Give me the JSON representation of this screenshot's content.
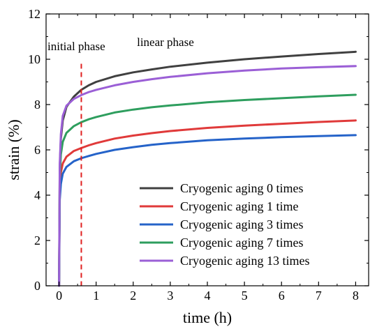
{
  "chart_data": {
    "type": "line",
    "xlabel": "time (h)",
    "ylabel": "strain (%)",
    "xlim": [
      -0.35,
      8.35
    ],
    "ylim": [
      0,
      12
    ],
    "xticks": [
      0,
      1,
      2,
      3,
      4,
      5,
      6,
      7,
      8
    ],
    "yticks": [
      0,
      2,
      4,
      6,
      8,
      10,
      12
    ],
    "grid": false,
    "legend_position": "bottom-right",
    "annotations": {
      "initial_phase": "initial phase",
      "linear_phase": "linear phase",
      "boundary_x": 0.6,
      "boundary_color": "#e02020"
    },
    "series": [
      {
        "name": "Cryogenic aging 0 times",
        "color": "#404040",
        "points": [
          [
            0,
            0
          ],
          [
            0.02,
            5.2
          ],
          [
            0.05,
            6.5
          ],
          [
            0.1,
            7.3
          ],
          [
            0.2,
            7.9
          ],
          [
            0.4,
            8.35
          ],
          [
            0.6,
            8.65
          ],
          [
            0.8,
            8.85
          ],
          [
            1,
            9.0
          ],
          [
            1.5,
            9.25
          ],
          [
            2,
            9.42
          ],
          [
            2.5,
            9.55
          ],
          [
            3,
            9.67
          ],
          [
            4,
            9.85
          ],
          [
            5,
            10.0
          ],
          [
            6,
            10.12
          ],
          [
            7,
            10.23
          ],
          [
            8,
            10.33
          ]
        ]
      },
      {
        "name": "Cryogenic aging 1 time",
        "color": "#e03a3a",
        "points": [
          [
            0,
            0
          ],
          [
            0.02,
            4.3
          ],
          [
            0.05,
            5.0
          ],
          [
            0.1,
            5.4
          ],
          [
            0.2,
            5.7
          ],
          [
            0.4,
            5.95
          ],
          [
            0.6,
            6.08
          ],
          [
            0.8,
            6.2
          ],
          [
            1,
            6.3
          ],
          [
            1.5,
            6.5
          ],
          [
            2,
            6.63
          ],
          [
            2.5,
            6.74
          ],
          [
            3,
            6.83
          ],
          [
            4,
            6.97
          ],
          [
            5,
            7.07
          ],
          [
            6,
            7.15
          ],
          [
            7,
            7.23
          ],
          [
            8,
            7.3
          ]
        ]
      },
      {
        "name": "Cryogenic aging 3 times",
        "color": "#2563c9",
        "points": [
          [
            0,
            0
          ],
          [
            0.02,
            3.8
          ],
          [
            0.05,
            4.5
          ],
          [
            0.1,
            4.95
          ],
          [
            0.2,
            5.25
          ],
          [
            0.4,
            5.5
          ],
          [
            0.6,
            5.63
          ],
          [
            0.8,
            5.73
          ],
          [
            1,
            5.82
          ],
          [
            1.5,
            6.0
          ],
          [
            2,
            6.12
          ],
          [
            2.5,
            6.22
          ],
          [
            3,
            6.3
          ],
          [
            4,
            6.42
          ],
          [
            5,
            6.5
          ],
          [
            6,
            6.56
          ],
          [
            7,
            6.61
          ],
          [
            8,
            6.65
          ]
        ]
      },
      {
        "name": "Cryogenic aging 7 times",
        "color": "#2e9e5e",
        "points": [
          [
            0,
            0
          ],
          [
            0.02,
            4.8
          ],
          [
            0.05,
            5.8
          ],
          [
            0.1,
            6.35
          ],
          [
            0.2,
            6.75
          ],
          [
            0.4,
            7.05
          ],
          [
            0.6,
            7.22
          ],
          [
            0.8,
            7.35
          ],
          [
            1,
            7.45
          ],
          [
            1.5,
            7.65
          ],
          [
            2,
            7.78
          ],
          [
            2.5,
            7.88
          ],
          [
            3,
            7.96
          ],
          [
            4,
            8.1
          ],
          [
            5,
            8.2
          ],
          [
            6,
            8.28
          ],
          [
            7,
            8.36
          ],
          [
            8,
            8.43
          ]
        ]
      },
      {
        "name": "Cryogenic aging 13 times",
        "color": "#9b5fd6",
        "points": [
          [
            0,
            0
          ],
          [
            0.02,
            5.4
          ],
          [
            0.05,
            6.7
          ],
          [
            0.1,
            7.5
          ],
          [
            0.2,
            7.95
          ],
          [
            0.4,
            8.25
          ],
          [
            0.6,
            8.42
          ],
          [
            0.8,
            8.55
          ],
          [
            1,
            8.65
          ],
          [
            1.5,
            8.85
          ],
          [
            2,
            9.0
          ],
          [
            2.5,
            9.12
          ],
          [
            3,
            9.22
          ],
          [
            4,
            9.38
          ],
          [
            5,
            9.5
          ],
          [
            6,
            9.59
          ],
          [
            7,
            9.65
          ],
          [
            8,
            9.7
          ]
        ]
      }
    ]
  }
}
